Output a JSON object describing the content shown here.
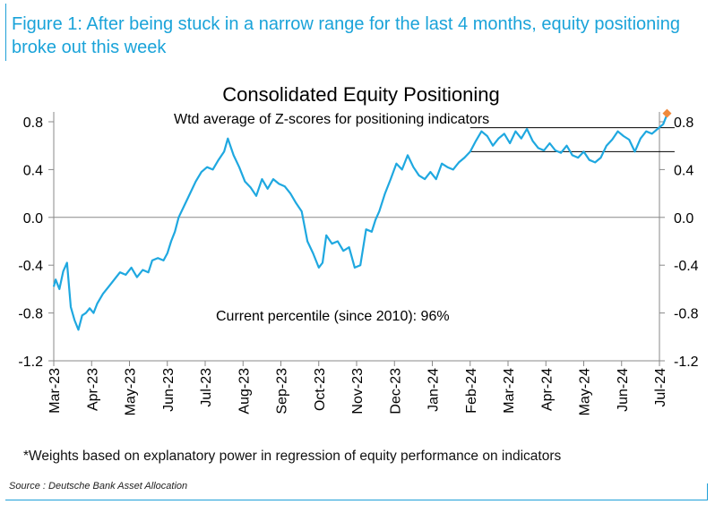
{
  "figure": {
    "title": "Figure 1: After being stuck in a narrow range for the last 4 months, equity positioning broke out this week",
    "footnote": "*Weights based on explanatory power in regression of equity performance on indicators",
    "source": "Source : Deutsche Bank Asset Allocation"
  },
  "chart_data": {
    "type": "line",
    "title": "Consolidated Equity Positioning",
    "subtitle": "Wtd average of Z-scores for positioning indicators",
    "annotation": "Current percentile (since 2010): 96%",
    "xlabel": "",
    "ylabel": "",
    "ylim": [
      -1.2,
      1.0
    ],
    "yticks": [
      "0.8",
      "0.4",
      "0.0",
      "-0.4",
      "-0.8",
      "-1.2"
    ],
    "ytick_values": [
      0.8,
      0.4,
      0.0,
      -0.4,
      -0.8,
      -1.2
    ],
    "xticks": [
      "Mar-23",
      "Apr-23",
      "May-23",
      "Jun-23",
      "Jul-23",
      "Aug-23",
      "Sep-23",
      "Oct-23",
      "Nov-23",
      "Dec-23",
      "Jan-24",
      "Feb-24",
      "Mar-24",
      "Apr-24",
      "May-24",
      "Jun-24",
      "Jul-24"
    ],
    "grid": false,
    "legend": "none",
    "line_color": "#1fa8e0",
    "marker_color": "#f08a3c",
    "range_lines": [
      {
        "y": 0.75,
        "x_start": 11.0,
        "x_end": 16.4
      },
      {
        "y": 0.55,
        "x_start": 11.0,
        "x_end": 16.4
      }
    ],
    "series": [
      {
        "x": [
          0.0,
          0.05,
          0.15,
          0.25,
          0.35,
          0.45,
          0.55,
          0.65,
          0.75,
          0.85,
          0.95,
          1.05,
          1.15,
          1.3,
          1.45,
          1.6,
          1.75,
          1.9,
          2.05,
          2.2,
          2.35,
          2.5,
          2.6,
          2.75,
          2.9,
          3.0,
          3.1,
          3.2,
          3.3,
          3.45,
          3.6,
          3.75,
          3.9,
          4.05,
          4.2,
          4.35,
          4.5,
          4.6,
          4.75,
          4.9,
          5.05,
          5.2,
          5.35,
          5.5,
          5.65,
          5.8,
          5.95,
          6.1,
          6.25,
          6.4,
          6.55,
          6.7,
          6.85,
          7.0,
          7.1,
          7.2,
          7.35,
          7.5,
          7.65,
          7.8,
          7.95,
          8.1,
          8.25,
          8.4,
          8.5,
          8.6,
          8.75,
          8.9,
          9.05,
          9.2,
          9.35,
          9.5,
          9.65,
          9.8,
          9.95,
          10.1,
          10.25,
          10.4,
          10.55,
          10.7,
          10.85,
          11.0,
          11.15,
          11.3,
          11.45,
          11.6,
          11.75,
          11.9,
          12.05,
          12.2,
          12.35,
          12.5,
          12.65,
          12.8,
          12.95,
          13.1,
          13.25,
          13.4,
          13.55,
          13.7,
          13.85,
          14.0,
          14.15,
          14.3,
          14.45,
          14.6,
          14.75,
          14.9,
          15.05,
          15.2,
          15.35,
          15.5,
          15.65,
          15.8,
          15.95,
          16.1,
          16.2
        ],
        "y": [
          -0.58,
          -0.52,
          -0.6,
          -0.45,
          -0.38,
          -0.75,
          -0.86,
          -0.94,
          -0.82,
          -0.8,
          -0.76,
          -0.8,
          -0.72,
          -0.64,
          -0.58,
          -0.52,
          -0.46,
          -0.48,
          -0.42,
          -0.5,
          -0.44,
          -0.46,
          -0.36,
          -0.34,
          -0.36,
          -0.3,
          -0.2,
          -0.12,
          0.0,
          0.1,
          0.2,
          0.3,
          0.38,
          0.42,
          0.4,
          0.48,
          0.55,
          0.66,
          0.52,
          0.42,
          0.3,
          0.25,
          0.18,
          0.32,
          0.24,
          0.32,
          0.28,
          0.26,
          0.2,
          0.12,
          0.05,
          -0.2,
          -0.3,
          -0.42,
          -0.38,
          -0.15,
          -0.22,
          -0.2,
          -0.28,
          -0.25,
          -0.42,
          -0.4,
          -0.1,
          -0.12,
          -0.02,
          0.05,
          0.2,
          0.32,
          0.45,
          0.4,
          0.52,
          0.42,
          0.35,
          0.32,
          0.38,
          0.32,
          0.45,
          0.42,
          0.4,
          0.46,
          0.5,
          0.55,
          0.64,
          0.72,
          0.68,
          0.6,
          0.66,
          0.7,
          0.62,
          0.72,
          0.66,
          0.74,
          0.64,
          0.58,
          0.56,
          0.62,
          0.56,
          0.54,
          0.6,
          0.52,
          0.5,
          0.55,
          0.48,
          0.46,
          0.5,
          0.6,
          0.65,
          0.72,
          0.68,
          0.65,
          0.55,
          0.66,
          0.72,
          0.7,
          0.74,
          0.78,
          0.86
        ]
      }
    ],
    "current_point": {
      "x": 16.2,
      "y": 0.87
    }
  }
}
